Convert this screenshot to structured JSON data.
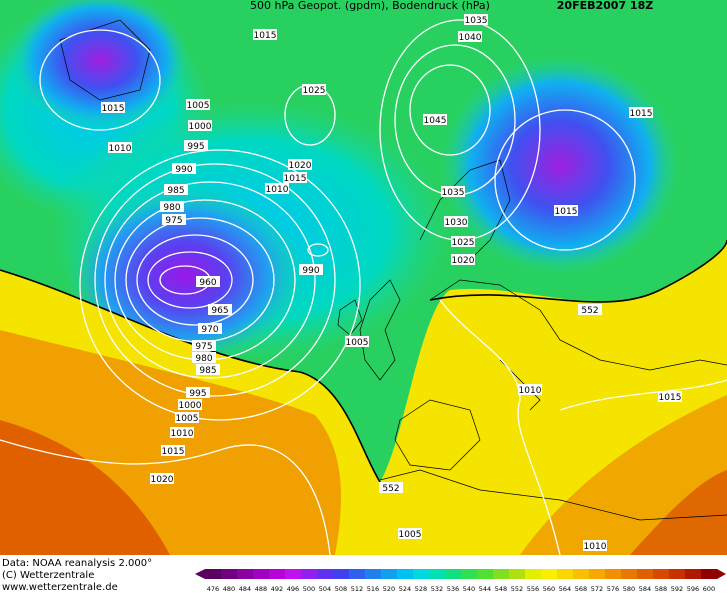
{
  "header": {
    "title": "500 hPa Geopot. (gpdm), Bodendruck (hPa)",
    "date": "20FEB2007 18Z"
  },
  "isobar_labels": [
    "1015",
    "1035",
    "1040",
    "1015",
    "1005",
    "1000",
    "1010",
    "995",
    "1025",
    "1045",
    "1015",
    "990",
    "985",
    "1020",
    "1015",
    "1010",
    "1035",
    "980",
    "975",
    "1015",
    "1030",
    "1025",
    "1020",
    "990",
    "960",
    "965",
    "970",
    "975",
    "980",
    "985",
    "552",
    "1005",
    "1010",
    "1015",
    "995",
    "1000",
    "1005",
    "1010",
    "1015",
    "1020",
    "552",
    "1005",
    "1010"
  ],
  "footer": {
    "source": "Data: NOAA reanalysis 2.000°",
    "copyright": "(C) Wetterzentrale",
    "url": "www.wetterzentrale.de"
  },
  "scale": {
    "labels": [
      476,
      480,
      484,
      488,
      492,
      496,
      500,
      504,
      508,
      512,
      516,
      520,
      524,
      528,
      532,
      536,
      540,
      544,
      548,
      552,
      556,
      560,
      564,
      568,
      572,
      576,
      580,
      584,
      588,
      592,
      596,
      600
    ],
    "colors": [
      "#5a0060",
      "#700080",
      "#8a00a0",
      "#a000c0",
      "#b800d8",
      "#c010f0",
      "#9020f0",
      "#6030f0",
      "#4040f0",
      "#3060f0",
      "#2080f0",
      "#10a0f0",
      "#00c0f0",
      "#00d8e0",
      "#00e0b0",
      "#10e080",
      "#30e050",
      "#50e030",
      "#80e020",
      "#b0e010",
      "#e0f000",
      "#f8f000",
      "#f8d800",
      "#f8c000",
      "#f8a800",
      "#f09000",
      "#e87800",
      "#e06000",
      "#d84800",
      "#c83000",
      "#b01800",
      "#900000"
    ]
  }
}
